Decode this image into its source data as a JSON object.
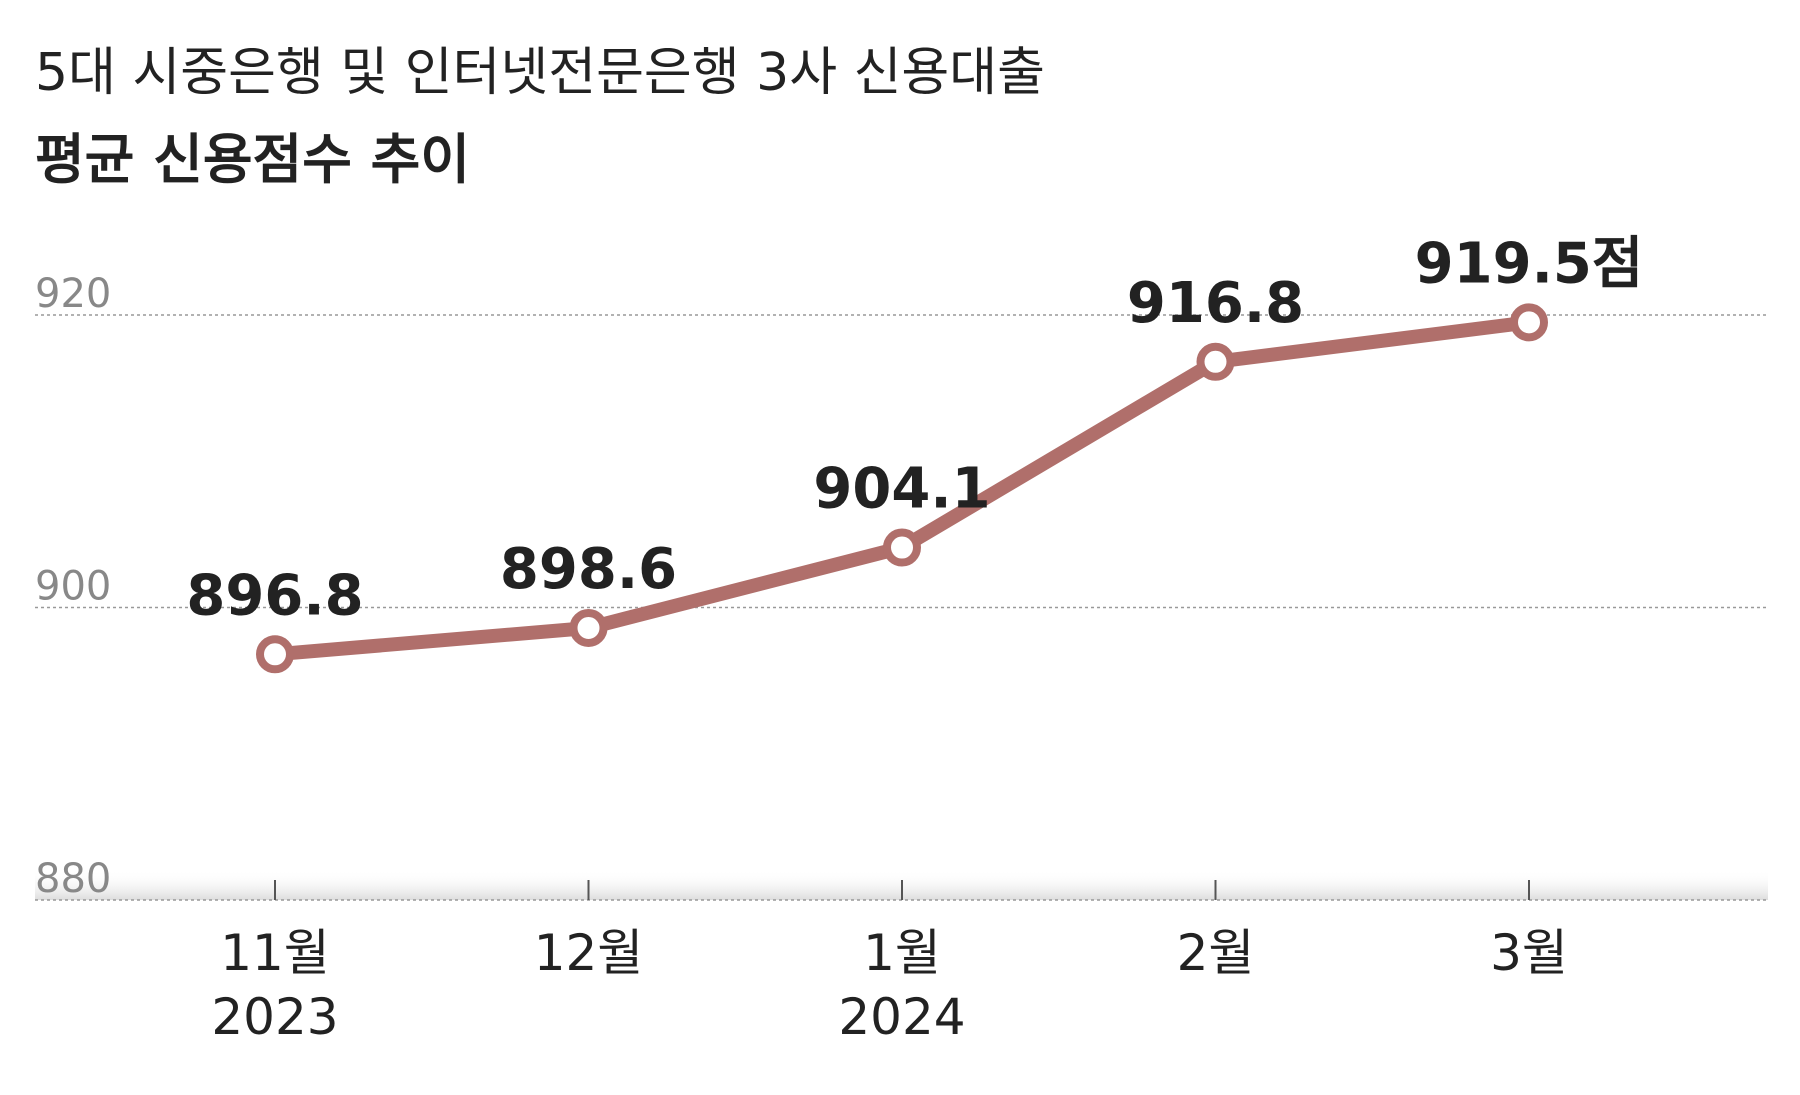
{
  "chart_data": {
    "type": "line",
    "title": "5대 시중은행 및 인터넷전문은행 3사 신용대출",
    "subtitle": "평균 신용점수 추이",
    "categories": [
      "11월",
      "12월",
      "1월",
      "2월",
      "3월"
    ],
    "year_labels": [
      "2023",
      null,
      "2024",
      null,
      null
    ],
    "values": [
      896.8,
      898.6,
      904.1,
      916.8,
      919.5
    ],
    "value_labels": [
      "896.8",
      "898.6",
      "904.1",
      "916.8",
      "919.5점"
    ],
    "color": "#b06f6b",
    "ylim": [
      880,
      920
    ],
    "yticks": [
      880,
      900,
      920
    ],
    "grid": true
  }
}
